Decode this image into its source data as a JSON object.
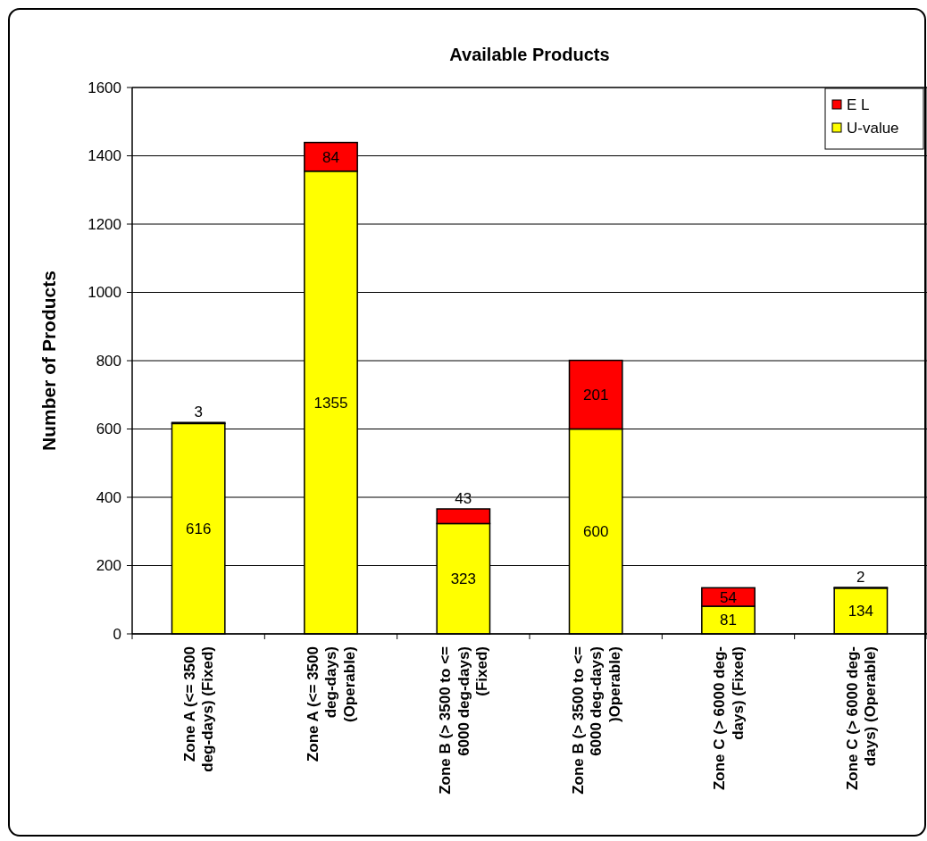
{
  "chart_data": {
    "type": "bar",
    "title": "Available Products",
    "ylabel": "Number of Products",
    "categories": [
      "Zone A (<= 3500\ndeg-days) (Fixed)",
      "Zone A (<= 3500\ndeg-days)\n(Operable)",
      "Zone B (> 3500 to <=\n6000 deg-days)\n(Fixed)",
      "Zone B (> 3500 to <=\n6000 deg-days)\n)Operable)",
      "Zone C (> 6000 deg-\ndays) (Fixed)",
      "Zone C (> 6000 deg-\ndays)  (Operable)"
    ],
    "series": [
      {
        "name": "U-value",
        "color": "#ffff00",
        "values": [
          616,
          1355,
          323,
          600,
          81,
          134
        ]
      },
      {
        "name": "E L",
        "color": "#ff0000",
        "values": [
          3,
          84,
          43,
          201,
          54,
          2
        ]
      }
    ],
    "stacked": true,
    "data_labels": true,
    "ylim": [
      0,
      1600
    ],
    "yticks": [
      0,
      200,
      400,
      600,
      800,
      1000,
      1200,
      1400,
      1600
    ],
    "grid": "y",
    "legend": "top right"
  }
}
